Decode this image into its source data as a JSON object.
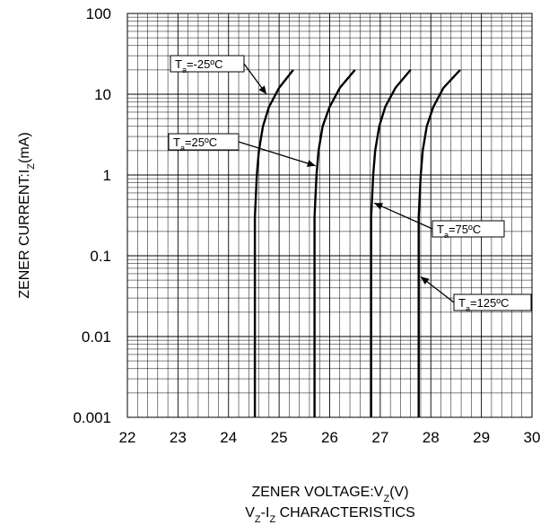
{
  "chart_data": {
    "type": "line",
    "title": "",
    "caption_main": "V",
    "caption_sub1": "Z",
    "caption_mid": "-I",
    "caption_sub2": "Z",
    "caption_rest": " CHARACTERISTICS",
    "xlabel_main": "ZENER VOLTAGE:V",
    "xlabel_sub": "Z",
    "xlabel_unit": "(V)",
    "ylabel_main": "ZENER CURRENT:I",
    "ylabel_sub": "Z",
    "ylabel_unit": "(mA)",
    "x_range": [
      22,
      30
    ],
    "y_range": [
      0.001,
      100
    ],
    "y_scale": "log",
    "x_ticks": [
      "22",
      "23",
      "24",
      "25",
      "26",
      "27",
      "28",
      "29",
      "30"
    ],
    "y_ticks": [
      "0.001",
      "0.01",
      "0.1",
      "1",
      "10",
      "100"
    ],
    "grid": true,
    "series": [
      {
        "name": "Ta=-25°C",
        "label_prefix": "T",
        "label_sub": "a",
        "label_rest": "=-25ºC",
        "points": [
          [
            24.52,
            0.001
          ],
          [
            24.52,
            0.3
          ],
          [
            24.56,
            1
          ],
          [
            24.6,
            2
          ],
          [
            24.68,
            4
          ],
          [
            24.8,
            7
          ],
          [
            25.0,
            12
          ],
          [
            25.28,
            20
          ]
        ]
      },
      {
        "name": "Ta=25°C",
        "label_prefix": "T",
        "label_sub": "a",
        "label_rest": "=25ºC",
        "points": [
          [
            25.7,
            0.001
          ],
          [
            25.7,
            0.3
          ],
          [
            25.74,
            1
          ],
          [
            25.78,
            2
          ],
          [
            25.86,
            4
          ],
          [
            26.0,
            7
          ],
          [
            26.2,
            12
          ],
          [
            26.5,
            20
          ]
        ]
      },
      {
        "name": "Ta=75°C",
        "label_prefix": "T",
        "label_sub": "a",
        "label_rest": "=75ºC",
        "points": [
          [
            26.82,
            0.001
          ],
          [
            26.82,
            0.3
          ],
          [
            26.86,
            1
          ],
          [
            26.9,
            2
          ],
          [
            26.98,
            4
          ],
          [
            27.1,
            7
          ],
          [
            27.3,
            12
          ],
          [
            27.6,
            20
          ]
        ]
      },
      {
        "name": "Ta=125°C",
        "label_prefix": "T",
        "label_sub": "a",
        "label_rest": "=125ºC",
        "points": [
          [
            27.76,
            0.001
          ],
          [
            27.76,
            0.3
          ],
          [
            27.8,
            1
          ],
          [
            27.84,
            2
          ],
          [
            27.92,
            4
          ],
          [
            28.05,
            7
          ],
          [
            28.25,
            12
          ],
          [
            28.58,
            20
          ]
        ]
      }
    ]
  }
}
